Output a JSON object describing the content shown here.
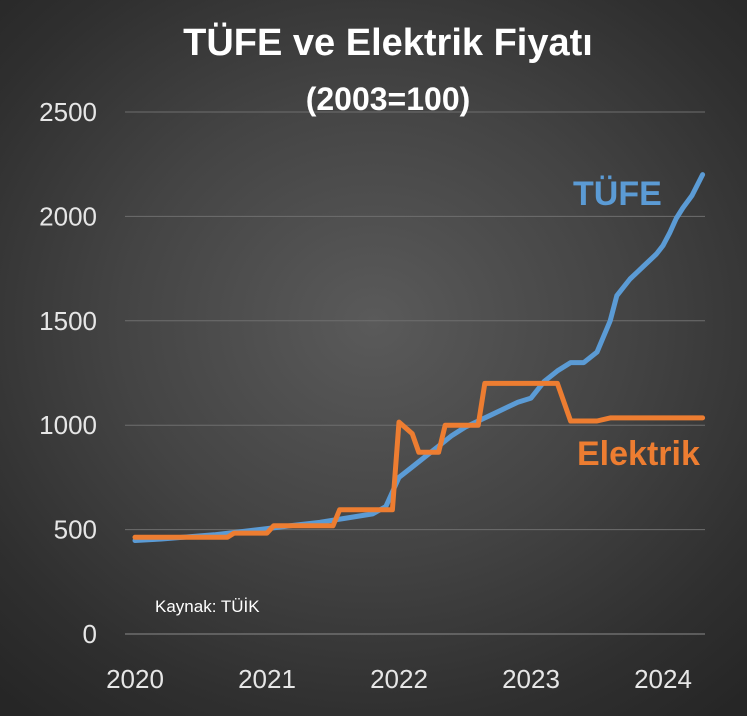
{
  "chart_data": {
    "type": "line",
    "title": "TÜFE ve Elektrik Fiyatı",
    "subtitle": "(2003=100)",
    "source": "Kaynak: TÜİK",
    "xlabel": "",
    "ylabel": "",
    "xlim": [
      2020,
      2024.3
    ],
    "ylim": [
      0,
      2500
    ],
    "yticks": [
      0,
      500,
      1000,
      1500,
      2000,
      2500
    ],
    "xticks": [
      2020,
      2021,
      2022,
      2023,
      2024
    ],
    "grid": true,
    "legend": "inline-labels",
    "series": [
      {
        "name": "TÜFE",
        "color": "#5b9bd5",
        "points": [
          [
            2020.0,
            448
          ],
          [
            2020.2,
            455
          ],
          [
            2020.4,
            465
          ],
          [
            2020.6,
            475
          ],
          [
            2020.8,
            490
          ],
          [
            2021.0,
            505
          ],
          [
            2021.2,
            520
          ],
          [
            2021.4,
            535
          ],
          [
            2021.6,
            555
          ],
          [
            2021.8,
            575
          ],
          [
            2021.9,
            610
          ],
          [
            2022.0,
            750
          ],
          [
            2022.1,
            800
          ],
          [
            2022.2,
            850
          ],
          [
            2022.3,
            900
          ],
          [
            2022.4,
            950
          ],
          [
            2022.5,
            990
          ],
          [
            2022.6,
            1020
          ],
          [
            2022.7,
            1050
          ],
          [
            2022.8,
            1080
          ],
          [
            2022.9,
            1110
          ],
          [
            2023.0,
            1130
          ],
          [
            2023.1,
            1210
          ],
          [
            2023.2,
            1260
          ],
          [
            2023.3,
            1300
          ],
          [
            2023.4,
            1300
          ],
          [
            2023.5,
            1350
          ],
          [
            2023.6,
            1500
          ],
          [
            2023.65,
            1620
          ],
          [
            2023.75,
            1700
          ],
          [
            2023.85,
            1760
          ],
          [
            2023.95,
            1820
          ],
          [
            2024.0,
            1860
          ],
          [
            2024.05,
            1920
          ],
          [
            2024.1,
            1990
          ],
          [
            2024.15,
            2040
          ],
          [
            2024.22,
            2100
          ],
          [
            2024.3,
            2200
          ]
        ]
      },
      {
        "name": "Elektrik",
        "color": "#ed7d31",
        "points": [
          [
            2020.0,
            463
          ],
          [
            2020.3,
            463
          ],
          [
            2020.6,
            463
          ],
          [
            2020.7,
            463
          ],
          [
            2020.75,
            483
          ],
          [
            2020.9,
            483
          ],
          [
            2021.0,
            483
          ],
          [
            2021.05,
            518
          ],
          [
            2021.3,
            518
          ],
          [
            2021.5,
            518
          ],
          [
            2021.55,
            595
          ],
          [
            2021.9,
            595
          ],
          [
            2021.95,
            595
          ],
          [
            2022.0,
            1015
          ],
          [
            2022.1,
            960
          ],
          [
            2022.15,
            870
          ],
          [
            2022.3,
            870
          ],
          [
            2022.35,
            1000
          ],
          [
            2022.5,
            1000
          ],
          [
            2022.6,
            1000
          ],
          [
            2022.65,
            1200
          ],
          [
            2023.0,
            1200
          ],
          [
            2023.2,
            1200
          ],
          [
            2023.3,
            1020
          ],
          [
            2023.5,
            1020
          ],
          [
            2023.6,
            1035
          ],
          [
            2023.8,
            1035
          ],
          [
            2024.0,
            1035
          ],
          [
            2024.3,
            1035
          ]
        ]
      }
    ]
  }
}
